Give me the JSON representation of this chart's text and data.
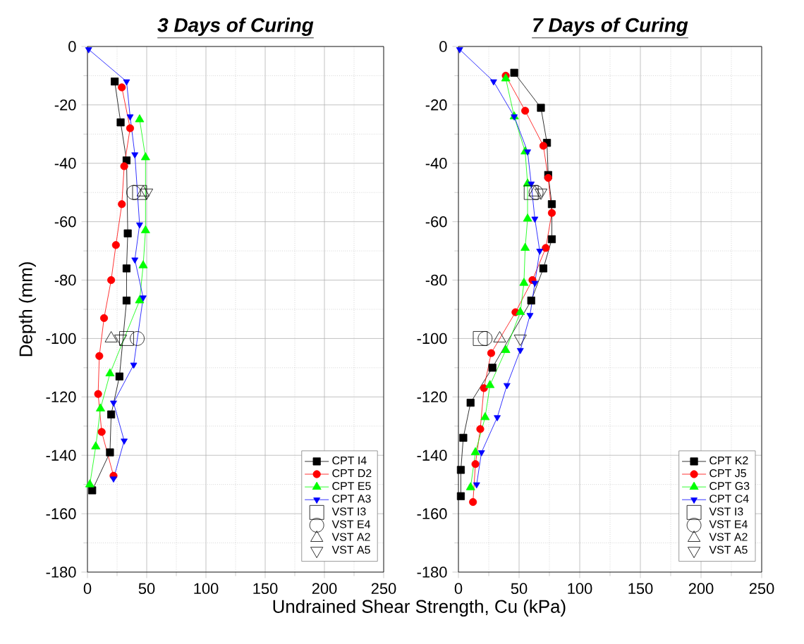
{
  "chart_data": [
    {
      "type": "line",
      "title": "3 Days of Curing",
      "xlabel": "Undrained Shear Strength, Cu (kPa)",
      "ylabel": "Depth (mm)",
      "xlim": [
        0,
        250
      ],
      "ylim": [
        -180,
        0
      ],
      "xticks": [
        0,
        50,
        100,
        150,
        200,
        250
      ],
      "yticks": [
        -180,
        -160,
        -140,
        -120,
        -100,
        -80,
        -60,
        -40,
        -20,
        0
      ],
      "grid": true,
      "legend": "bottom right",
      "series": [
        {
          "name": "CPT I4",
          "color": "#000000",
          "marker": "square",
          "x": [
            23,
            28,
            33,
            34,
            33,
            33,
            27,
            20,
            19,
            4
          ],
          "values": [
            -12,
            -26,
            -39,
            -64,
            -76,
            -87,
            -113,
            -126,
            -139,
            -152
          ]
        },
        {
          "name": "CPT D2",
          "color": "#ff0000",
          "marker": "circle",
          "x": [
            29,
            36,
            31,
            29,
            24,
            20,
            14,
            10,
            9,
            12,
            22
          ],
          "values": [
            -14,
            -28,
            -41,
            -54,
            -68,
            -80,
            -93,
            -106,
            -119,
            -132,
            -147
          ]
        },
        {
          "name": "CPT E5",
          "color": "#00ff00",
          "marker": "triangle",
          "x": [
            44,
            49,
            49,
            47,
            44,
            19,
            11,
            7,
            2
          ],
          "values": [
            -25,
            -38,
            -63,
            -75,
            -87,
            -112,
            -124,
            -137,
            -150
          ]
        },
        {
          "name": "CPT A3",
          "color": "#0000ff",
          "marker": "triangle-down",
          "x": [
            1,
            33,
            36,
            40,
            44,
            40,
            47,
            39,
            22,
            31,
            22
          ],
          "values": [
            -1,
            -12,
            -24,
            -37,
            -61,
            -73,
            -86,
            -109,
            -122,
            -135,
            -148
          ]
        },
        {
          "name": "VST I3",
          "type": "scatter",
          "color": "#000000",
          "marker": "square",
          "x": [
            44,
            33
          ],
          "values": [
            -50,
            -100
          ]
        },
        {
          "name": "VST E4",
          "type": "scatter",
          "color": "#000000",
          "marker": "circle",
          "x": [
            39,
            42
          ],
          "values": [
            -50,
            -100
          ]
        },
        {
          "name": "VST A2",
          "type": "scatter",
          "color": "#000000",
          "marker": "triangle",
          "x": [
            47,
            20
          ],
          "values": [
            -50,
            -100
          ]
        },
        {
          "name": "VST A5",
          "type": "scatter",
          "color": "#000000",
          "marker": "triangle-down",
          "x": [
            50,
            28
          ],
          "values": [
            -50,
            -100
          ]
        }
      ]
    },
    {
      "type": "line",
      "title": "7 Days of Curing",
      "xlim": [
        0,
        250
      ],
      "ylim": [
        -180,
        0
      ],
      "xticks": [
        0,
        50,
        100,
        150,
        200,
        250
      ],
      "yticks": [
        -180,
        -160,
        -140,
        -120,
        -100,
        -80,
        -60,
        -40,
        -20,
        0
      ],
      "grid": true,
      "legend": "bottom right",
      "series": [
        {
          "name": "CPT K2",
          "color": "#000000",
          "marker": "square",
          "x": [
            46,
            68,
            73,
            74,
            77,
            77,
            70,
            60,
            28,
            10,
            4,
            2,
            2
          ],
          "values": [
            -9,
            -21,
            -33,
            -44,
            -54,
            -66,
            -76,
            -87,
            -110,
            -122,
            -134,
            -145,
            -154
          ]
        },
        {
          "name": "CPT J5",
          "color": "#ff0000",
          "marker": "circle",
          "x": [
            39,
            55,
            70,
            74,
            77,
            72,
            61,
            47,
            27,
            21,
            18,
            14,
            12
          ],
          "values": [
            -10,
            -22,
            -34,
            -45,
            -57,
            -69,
            -80,
            -91,
            -105,
            -117,
            -131,
            -143,
            -156
          ]
        },
        {
          "name": "CPT G3",
          "color": "#00ff00",
          "marker": "triangle",
          "x": [
            39,
            46,
            55,
            57,
            57,
            55,
            54,
            51,
            39,
            26,
            22,
            14,
            10
          ],
          "values": [
            -11,
            -24,
            -36,
            -47,
            -59,
            -69,
            -81,
            -91,
            -104,
            -116,
            -127,
            -139,
            -151
          ]
        },
        {
          "name": "CPT C4",
          "color": "#0000ff",
          "marker": "triangle-down",
          "x": [
            1,
            29,
            46,
            57,
            60,
            63,
            67,
            63,
            59,
            51,
            40,
            32,
            19,
            15
          ],
          "values": [
            -1,
            -12,
            -24,
            -36,
            -47,
            -59,
            -70,
            -81,
            -92,
            -104,
            -116,
            -127,
            -139,
            -150
          ]
        },
        {
          "name": "VST I3",
          "type": "scatter",
          "color": "#000000",
          "marker": "square",
          "x": [
            60,
            18
          ],
          "values": [
            -50,
            -100
          ]
        },
        {
          "name": "VST E4",
          "type": "scatter",
          "color": "#000000",
          "marker": "circle",
          "x": [
            64,
            22
          ],
          "values": [
            -50,
            -100
          ]
        },
        {
          "name": "VST A2",
          "type": "scatter",
          "color": "#000000",
          "marker": "triangle",
          "x": [
            63,
            34
          ],
          "values": [
            -50,
            -100
          ]
        },
        {
          "name": "VST A5",
          "type": "scatter",
          "color": "#000000",
          "marker": "triangle-down",
          "x": [
            68,
            51
          ],
          "values": [
            -50,
            -100
          ]
        }
      ]
    }
  ]
}
